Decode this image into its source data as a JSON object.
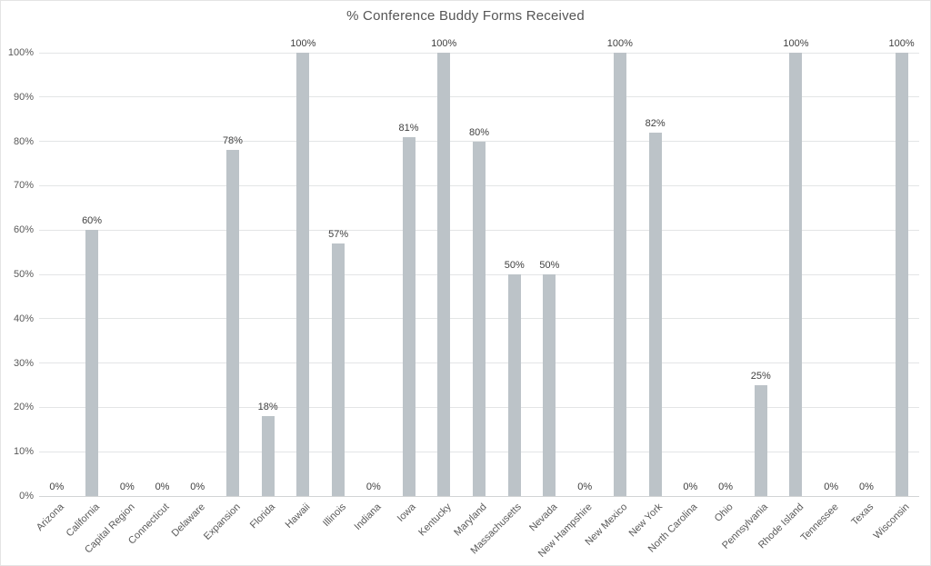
{
  "chart_data": {
    "type": "bar",
    "title": "% Conference Buddy Forms Received",
    "categories": [
      "Arizona",
      "California",
      "Capital Region",
      "Connecticut",
      "Delaware",
      "Expansion",
      "Florida",
      "Hawaii",
      "Illinois",
      "Indiana",
      "Iowa",
      "Kentucky",
      "Maryland",
      "Massachusetts",
      "Nevada",
      "New Hampshire",
      "New Mexico",
      "New York",
      "North Carolina",
      "Ohio",
      "Pennsylvania",
      "Rhode Island",
      "Tennessee",
      "Texas",
      "Wisconsin"
    ],
    "values": [
      0,
      60,
      0,
      0,
      0,
      78,
      18,
      100,
      57,
      0,
      81,
      100,
      80,
      50,
      50,
      0,
      100,
      82,
      0,
      0,
      25,
      100,
      0,
      0,
      100
    ],
    "data_labels": [
      "0%",
      "60%",
      "0%",
      "0%",
      "0%",
      "78%",
      "18%",
      "100%",
      "57%",
      "0%",
      "81%",
      "100%",
      "80%",
      "50%",
      "50%",
      "0%",
      "100%",
      "82%",
      "0%",
      "0%",
      "25%",
      "100%",
      "0%",
      "0%",
      "100%"
    ],
    "xlabel": "",
    "ylabel": "",
    "ylim": [
      0,
      100
    ],
    "ytick_step": 10,
    "ytick_labels": [
      "0%",
      "10%",
      "20%",
      "30%",
      "40%",
      "50%",
      "60%",
      "70%",
      "80%",
      "90%",
      "100%"
    ],
    "grid": "horizontal",
    "legend": "none",
    "colors": {
      "bar": "#bcc3c8",
      "gridline": "#e3e5e6",
      "axis_line": "#d2d4d5",
      "axis_text": "#595959",
      "data_label_text": "#404040",
      "title_text": "#555555"
    }
  }
}
